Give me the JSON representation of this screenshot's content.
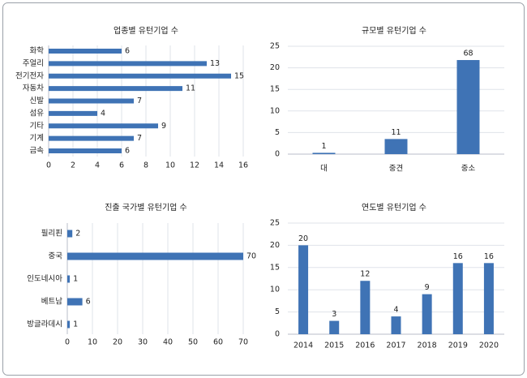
{
  "chart_data": [
    {
      "type": "hbar",
      "title": "업종별 유턴기업 수",
      "categories": [
        "화학",
        "주얼리",
        "전기전자",
        "자동차",
        "신발",
        "섬유",
        "기타",
        "기계",
        "금속"
      ],
      "values": [
        6,
        13,
        15,
        11,
        7,
        4,
        9,
        7,
        6
      ],
      "color": "#3f73b5",
      "xlim": [
        0,
        16
      ],
      "xticks": [
        0,
        2,
        4,
        6,
        8,
        10,
        12,
        14,
        16
      ],
      "grid": true
    },
    {
      "type": "bar",
      "title": "규모별 유턴기업 수",
      "categories": [
        "대",
        "중견",
        "중소"
      ],
      "values": [
        0.3,
        3.5,
        21.8
      ],
      "labels": [
        1,
        11,
        68
      ],
      "color": "#3f73b5",
      "ylim": [
        0,
        25
      ],
      "yticks": [
        0,
        5,
        10,
        15,
        20,
        25
      ],
      "grid": true
    },
    {
      "type": "hbar",
      "title": "진출 국가별 유턴기업 수",
      "categories": [
        "필리핀",
        "중국",
        "인도네시아",
        "베트남",
        "방글라데시"
      ],
      "values": [
        2,
        70,
        1,
        6,
        1
      ],
      "color": "#3f73b5",
      "xlim": [
        0,
        70
      ],
      "xticks": [
        0,
        10,
        20,
        30,
        40,
        50,
        60,
        70
      ],
      "grid": true
    },
    {
      "type": "bar",
      "title": "연도별 유턴기업 수",
      "categories": [
        "2014",
        "2015",
        "2016",
        "2017",
        "2018",
        "2019",
        "2020"
      ],
      "values": [
        20,
        3,
        12,
        4,
        9,
        16,
        16
      ],
      "color": "#3f73b5",
      "ylim": [
        0,
        25
      ],
      "yticks": [
        0,
        5,
        10,
        15,
        20,
        25
      ],
      "grid": true
    }
  ]
}
